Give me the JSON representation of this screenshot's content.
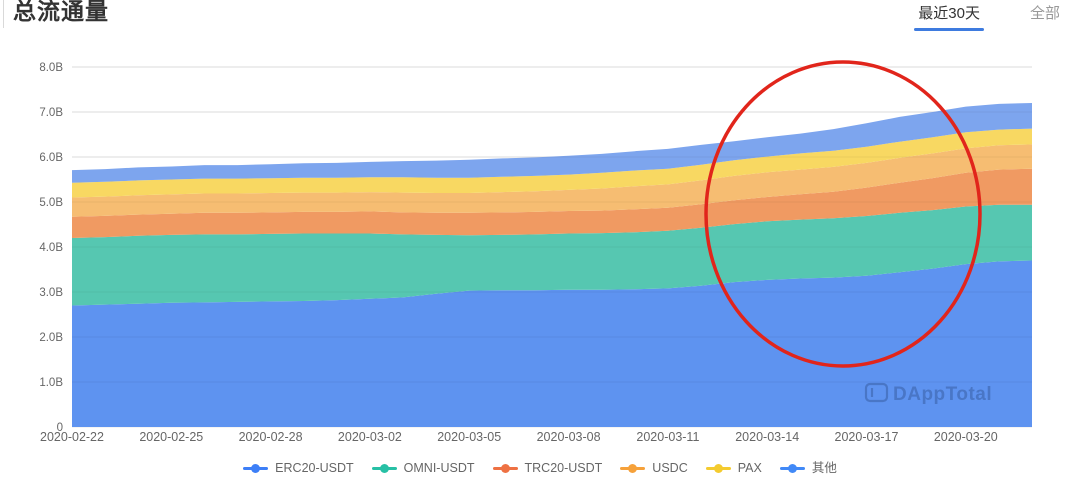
{
  "header": {
    "title": "总流通量",
    "range_tabs": [
      {
        "label": "最近30天",
        "active": true
      },
      {
        "label": "全部",
        "active": false
      }
    ]
  },
  "watermark": {
    "text": "DAppTotal"
  },
  "annotation": {
    "type": "ellipse",
    "color": "#e1251b",
    "note": "hand-drawn red circle highlighting the supply growth between 2020-03-13 and 2020-03-20"
  },
  "colors": {
    "tab_active_underline": "#3e7bdf",
    "grid_line": "#e8e8e8",
    "axis_text": "#666666",
    "title_text": "#333333",
    "watermark_fill": "#1f3c73"
  },
  "chart_data": {
    "type": "area",
    "stacked": true,
    "title": "总流通量",
    "unit": "B",
    "ylim": [
      0,
      8
    ],
    "grid": true,
    "legend_position": "bottom",
    "y_ticks": [
      "0",
      "1.0B",
      "2.0B",
      "3.0B",
      "4.0B",
      "5.0B",
      "6.0B",
      "7.0B",
      "8.0B"
    ],
    "x": [
      "2020-02-22",
      "2020-02-23",
      "2020-02-24",
      "2020-02-25",
      "2020-02-26",
      "2020-02-27",
      "2020-02-28",
      "2020-02-29",
      "2020-03-01",
      "2020-03-02",
      "2020-03-03",
      "2020-03-04",
      "2020-03-05",
      "2020-03-06",
      "2020-03-07",
      "2020-03-08",
      "2020-03-09",
      "2020-03-10",
      "2020-03-11",
      "2020-03-12",
      "2020-03-13",
      "2020-03-14",
      "2020-03-15",
      "2020-03-16",
      "2020-03-17",
      "2020-03-18",
      "2020-03-19",
      "2020-03-20",
      "2020-03-21",
      "2020-03-22"
    ],
    "x_tick_labels": [
      "2020-02-22",
      "2020-02-25",
      "2020-02-28",
      "2020-03-02",
      "2020-03-05",
      "2020-03-08",
      "2020-03-11",
      "2020-03-14",
      "2020-03-17",
      "2020-03-20"
    ],
    "series": [
      {
        "name": "ERC20-USDT",
        "area_color": "#5e93f0",
        "legend_color": "#3d7ff7",
        "values": [
          2.7,
          2.72,
          2.74,
          2.76,
          2.77,
          2.78,
          2.79,
          2.8,
          2.82,
          2.85,
          2.88,
          2.96,
          3.03,
          3.04,
          3.04,
          3.05,
          3.05,
          3.06,
          3.08,
          3.14,
          3.22,
          3.27,
          3.3,
          3.32,
          3.36,
          3.44,
          3.52,
          3.62,
          3.68,
          3.7
        ]
      },
      {
        "name": "OMNI-USDT",
        "area_color": "#56c7b1",
        "legend_color": "#27c0a5",
        "values": [
          1.5,
          1.5,
          1.51,
          1.51,
          1.51,
          1.5,
          1.5,
          1.5,
          1.48,
          1.45,
          1.4,
          1.31,
          1.23,
          1.23,
          1.24,
          1.25,
          1.26,
          1.27,
          1.28,
          1.29,
          1.29,
          1.3,
          1.31,
          1.32,
          1.33,
          1.32,
          1.3,
          1.28,
          1.26,
          1.24
        ]
      },
      {
        "name": "TRC20-USDT",
        "area_color": "#f09a62",
        "legend_color": "#ee7143",
        "values": [
          0.47,
          0.47,
          0.47,
          0.47,
          0.48,
          0.48,
          0.48,
          0.48,
          0.48,
          0.49,
          0.49,
          0.49,
          0.5,
          0.5,
          0.5,
          0.5,
          0.5,
          0.51,
          0.51,
          0.52,
          0.53,
          0.54,
          0.56,
          0.59,
          0.63,
          0.67,
          0.71,
          0.75,
          0.78,
          0.8
        ]
      },
      {
        "name": "USDC",
        "area_color": "#f6bd72",
        "legend_color": "#f6a13a",
        "values": [
          0.43,
          0.43,
          0.43,
          0.43,
          0.43,
          0.43,
          0.43,
          0.43,
          0.43,
          0.43,
          0.44,
          0.44,
          0.44,
          0.45,
          0.46,
          0.47,
          0.49,
          0.51,
          0.52,
          0.53,
          0.54,
          0.55,
          0.55,
          0.55,
          0.55,
          0.55,
          0.55,
          0.54,
          0.54,
          0.54
        ]
      },
      {
        "name": "PAX",
        "area_color": "#f8d862",
        "legend_color": "#f4cb2f",
        "values": [
          0.33,
          0.33,
          0.33,
          0.33,
          0.33,
          0.33,
          0.33,
          0.33,
          0.33,
          0.33,
          0.34,
          0.34,
          0.34,
          0.34,
          0.34,
          0.34,
          0.35,
          0.35,
          0.35,
          0.35,
          0.35,
          0.35,
          0.36,
          0.36,
          0.36,
          0.36,
          0.36,
          0.36,
          0.35,
          0.35
        ]
      },
      {
        "name": "其他",
        "area_color": "#7da5ee",
        "legend_color": "#4189f7",
        "values": [
          0.28,
          0.28,
          0.29,
          0.29,
          0.3,
          0.3,
          0.31,
          0.32,
          0.33,
          0.34,
          0.36,
          0.38,
          0.4,
          0.41,
          0.41,
          0.42,
          0.42,
          0.43,
          0.44,
          0.44,
          0.42,
          0.43,
          0.44,
          0.48,
          0.52,
          0.55,
          0.56,
          0.57,
          0.57,
          0.57
        ]
      }
    ]
  }
}
